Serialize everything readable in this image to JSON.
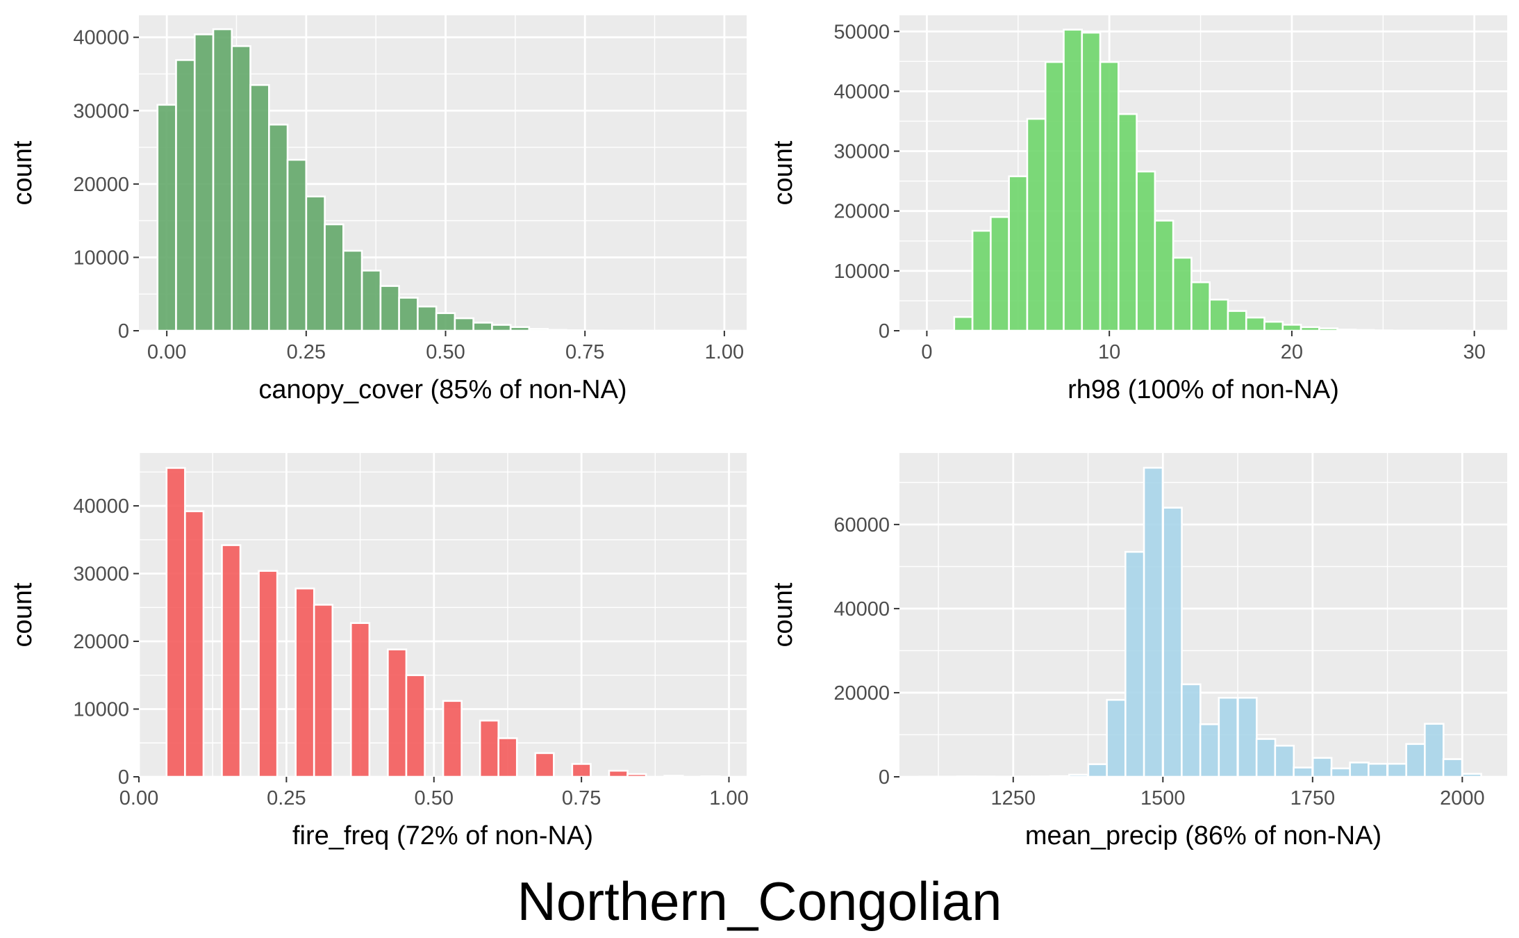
{
  "figure": {
    "title": "Northern_Congolian"
  },
  "chart_data": [
    {
      "type": "bar",
      "xlabel": "canopy_cover (85% of non-NA)",
      "ylabel": "count",
      "fill": "#64A96A",
      "xlim": [
        -0.05,
        1.04
      ],
      "ylim": [
        0,
        43000
      ],
      "xticks": [
        "0.00",
        "0.25",
        "0.50",
        "0.75",
        "1.00"
      ],
      "xtick_values": [
        0,
        0.25,
        0.5,
        0.75,
        1.0
      ],
      "yticks": [
        "0",
        "10000",
        "20000",
        "30000",
        "40000"
      ],
      "ytick_values": [
        0,
        10000,
        20000,
        30000,
        40000
      ],
      "bin_width": 0.0333,
      "bins": [
        {
          "x": 0.0,
          "y": 30800
        },
        {
          "x": 0.0333,
          "y": 36900
        },
        {
          "x": 0.0667,
          "y": 40400
        },
        {
          "x": 0.1,
          "y": 41100
        },
        {
          "x": 0.1333,
          "y": 38800
        },
        {
          "x": 0.1667,
          "y": 33500
        },
        {
          "x": 0.2,
          "y": 28100
        },
        {
          "x": 0.2333,
          "y": 23300
        },
        {
          "x": 0.2667,
          "y": 18300
        },
        {
          "x": 0.3,
          "y": 14500
        },
        {
          "x": 0.3333,
          "y": 10900
        },
        {
          "x": 0.3667,
          "y": 8200
        },
        {
          "x": 0.4,
          "y": 6100
        },
        {
          "x": 0.4333,
          "y": 4500
        },
        {
          "x": 0.4667,
          "y": 3300
        },
        {
          "x": 0.5,
          "y": 2400
        },
        {
          "x": 0.5333,
          "y": 1700
        },
        {
          "x": 0.5667,
          "y": 1100
        },
        {
          "x": 0.6,
          "y": 800
        },
        {
          "x": 0.6333,
          "y": 500
        },
        {
          "x": 0.6667,
          "y": 250
        },
        {
          "x": 0.7,
          "y": 120
        },
        {
          "x": 0.7333,
          "y": 60
        },
        {
          "x": 0.7667,
          "y": 30
        },
        {
          "x": 0.8,
          "y": 15
        },
        {
          "x": 0.8333,
          "y": 8
        },
        {
          "x": 0.8667,
          "y": 4
        },
        {
          "x": 0.9,
          "y": 2
        },
        {
          "x": 0.9333,
          "y": 1
        },
        {
          "x": 0.9667,
          "y": 1
        }
      ]
    },
    {
      "type": "bar",
      "xlabel": "rh98 (100% of non-NA)",
      "ylabel": "count",
      "fill": "#6FD66C",
      "xlim": [
        -1.5,
        31.8
      ],
      "ylim": [
        0,
        52700
      ],
      "xticks": [
        "0",
        "10",
        "20",
        "30"
      ],
      "xtick_values": [
        0,
        10,
        20,
        30
      ],
      "yticks": [
        "0",
        "10000",
        "20000",
        "30000",
        "40000",
        "50000"
      ],
      "ytick_values": [
        0,
        10000,
        20000,
        30000,
        40000,
        50000
      ],
      "bin_width": 1.0,
      "bins": [
        {
          "x": 0.0,
          "y": 10
        },
        {
          "x": 1.0,
          "y": 50
        },
        {
          "x": 2.0,
          "y": 2300
        },
        {
          "x": 3.0,
          "y": 16700
        },
        {
          "x": 4.0,
          "y": 19000
        },
        {
          "x": 5.0,
          "y": 25800
        },
        {
          "x": 6.0,
          "y": 35400
        },
        {
          "x": 7.0,
          "y": 44900
        },
        {
          "x": 8.0,
          "y": 50300
        },
        {
          "x": 9.0,
          "y": 49800
        },
        {
          "x": 10.0,
          "y": 44900
        },
        {
          "x": 11.0,
          "y": 36200
        },
        {
          "x": 12.0,
          "y": 26600
        },
        {
          "x": 13.0,
          "y": 18400
        },
        {
          "x": 14.0,
          "y": 12200
        },
        {
          "x": 15.0,
          "y": 8100
        },
        {
          "x": 16.0,
          "y": 5200
        },
        {
          "x": 17.0,
          "y": 3300
        },
        {
          "x": 18.0,
          "y": 2200
        },
        {
          "x": 19.0,
          "y": 1500
        },
        {
          "x": 20.0,
          "y": 1000
        },
        {
          "x": 21.0,
          "y": 600
        },
        {
          "x": 22.0,
          "y": 400
        },
        {
          "x": 23.0,
          "y": 200
        },
        {
          "x": 24.0,
          "y": 120
        },
        {
          "x": 25.0,
          "y": 60
        },
        {
          "x": 26.0,
          "y": 30
        },
        {
          "x": 27.0,
          "y": 15
        },
        {
          "x": 28.0,
          "y": 8
        },
        {
          "x": 29.0,
          "y": 4
        }
      ]
    },
    {
      "type": "bar",
      "xlabel": "fire_freq (72% of non-NA)",
      "ylabel": "count",
      "fill": "#F45C5C",
      "xlim": [
        0.0,
        1.03
      ],
      "ylim": [
        0,
        47800
      ],
      "xticks": [
        "0.00",
        "0.25",
        "0.50",
        "0.75",
        "1.00"
      ],
      "xtick_values": [
        0,
        0.25,
        0.5,
        0.75,
        1.0
      ],
      "yticks": [
        "0",
        "10000",
        "20000",
        "30000",
        "40000"
      ],
      "ytick_values": [
        0,
        10000,
        20000,
        30000,
        40000
      ],
      "bin_width": 0.0313,
      "bins": [
        {
          "x": 0.0625,
          "y": 45600
        },
        {
          "x": 0.0938,
          "y": 39200
        },
        {
          "x": 0.1563,
          "y": 34200
        },
        {
          "x": 0.2188,
          "y": 30400
        },
        {
          "x": 0.2813,
          "y": 27800
        },
        {
          "x": 0.3125,
          "y": 25400
        },
        {
          "x": 0.375,
          "y": 22700
        },
        {
          "x": 0.4375,
          "y": 18800
        },
        {
          "x": 0.4688,
          "y": 15000
        },
        {
          "x": 0.5313,
          "y": 11200
        },
        {
          "x": 0.5938,
          "y": 8300
        },
        {
          "x": 0.625,
          "y": 5700
        },
        {
          "x": 0.6875,
          "y": 3500
        },
        {
          "x": 0.75,
          "y": 1900
        },
        {
          "x": 0.8125,
          "y": 900
        },
        {
          "x": 0.8438,
          "y": 400
        },
        {
          "x": 0.9063,
          "y": 150
        },
        {
          "x": 0.9688,
          "y": 60
        }
      ]
    },
    {
      "type": "bar",
      "xlabel": "mean_precip (86% of non-NA)",
      "ylabel": "count",
      "fill": "#A9D5EA",
      "xlim": [
        1060,
        2075
      ],
      "ylim": [
        0,
        77000
      ],
      "xticks": [
        "1250",
        "1500",
        "1750",
        "2000"
      ],
      "xtick_values": [
        1250,
        1500,
        1750,
        2000
      ],
      "yticks": [
        "0",
        "20000",
        "40000",
        "60000"
      ],
      "ytick_values": [
        0,
        20000,
        40000,
        60000
      ],
      "bin_width": 31.25,
      "bins": [
        {
          "x": 1109,
          "y": 20
        },
        {
          "x": 1140,
          "y": 40
        },
        {
          "x": 1172,
          "y": 80
        },
        {
          "x": 1203,
          "y": 60
        },
        {
          "x": 1234,
          "y": 40
        },
        {
          "x": 1265,
          "y": 60
        },
        {
          "x": 1297,
          "y": 80
        },
        {
          "x": 1328,
          "y": 150
        },
        {
          "x": 1359,
          "y": 500
        },
        {
          "x": 1391,
          "y": 3000
        },
        {
          "x": 1422,
          "y": 18300
        },
        {
          "x": 1453,
          "y": 53500
        },
        {
          "x": 1484,
          "y": 73500
        },
        {
          "x": 1516,
          "y": 64000
        },
        {
          "x": 1547,
          "y": 22000
        },
        {
          "x": 1578,
          "y": 12500
        },
        {
          "x": 1609,
          "y": 18800
        },
        {
          "x": 1641,
          "y": 18800
        },
        {
          "x": 1672,
          "y": 9000
        },
        {
          "x": 1703,
          "y": 7400
        },
        {
          "x": 1734,
          "y": 2200
        },
        {
          "x": 1766,
          "y": 4500
        },
        {
          "x": 1797,
          "y": 2000
        },
        {
          "x": 1828,
          "y": 3400
        },
        {
          "x": 1859,
          "y": 3100
        },
        {
          "x": 1891,
          "y": 3100
        },
        {
          "x": 1922,
          "y": 7800
        },
        {
          "x": 1953,
          "y": 12600
        },
        {
          "x": 1984,
          "y": 4200
        },
        {
          "x": 2016,
          "y": 700
        }
      ]
    }
  ]
}
